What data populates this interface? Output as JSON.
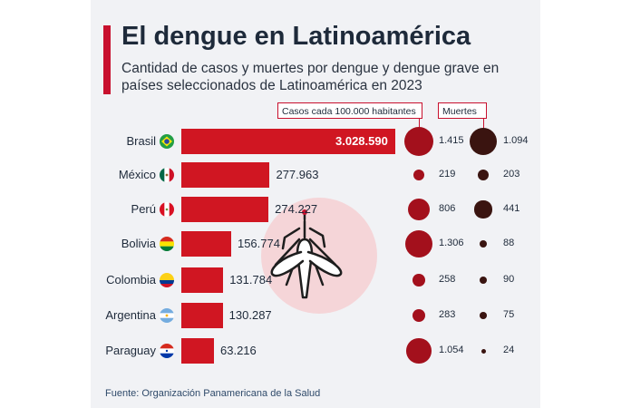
{
  "title": "El dengue en Latinoamérica",
  "subtitle": "Cantidad de casos y muertes por dengue y dengue grave en países seleccionados de Latinoamérica en 2023",
  "source": "Fuente: Organización Panamericana de la Salud",
  "colors": {
    "accent": "#c8102e",
    "bar": "#d01622",
    "cases_bubble": "#a3101c",
    "deaths_bubble": "#3a1410",
    "card_bg": "#f1f2f5",
    "mosquito_circle": "#f5d5d8"
  },
  "icon": "mosquito-icon",
  "chart_data": {
    "type": "bar",
    "categories": [
      "Brasil",
      "México",
      "Perú",
      "Bolivia",
      "Colombia",
      "Argentina",
      "Paraguay"
    ],
    "flags": [
      "brazil-flag-icon",
      "mexico-flag-icon",
      "peru-flag-icon",
      "bolivia-flag-icon",
      "colombia-flag-icon",
      "argentina-flag-icon",
      "paraguay-flag-icon"
    ],
    "bar_values": [
      3028590,
      277963,
      274227,
      156774,
      131784,
      130287,
      63216
    ],
    "bar_labels": [
      "3.028.590",
      "277.963",
      "274.227",
      "156.774",
      "131.784",
      "130.287",
      "63.216"
    ],
    "legend": [
      "Casos cada 100.000 habitantes",
      "Muertes"
    ],
    "cases_per_100k": [
      1415,
      219,
      806,
      1306,
      258,
      283,
      1054
    ],
    "cases_per_100k_labels": [
      "1.415",
      "219",
      "806",
      "1.306",
      "258",
      "283",
      "1.054"
    ],
    "deaths": [
      1094,
      203,
      441,
      88,
      90,
      75,
      24
    ],
    "deaths_labels": [
      "1.094",
      "203",
      "441",
      "88",
      "90",
      "75",
      "24"
    ]
  }
}
